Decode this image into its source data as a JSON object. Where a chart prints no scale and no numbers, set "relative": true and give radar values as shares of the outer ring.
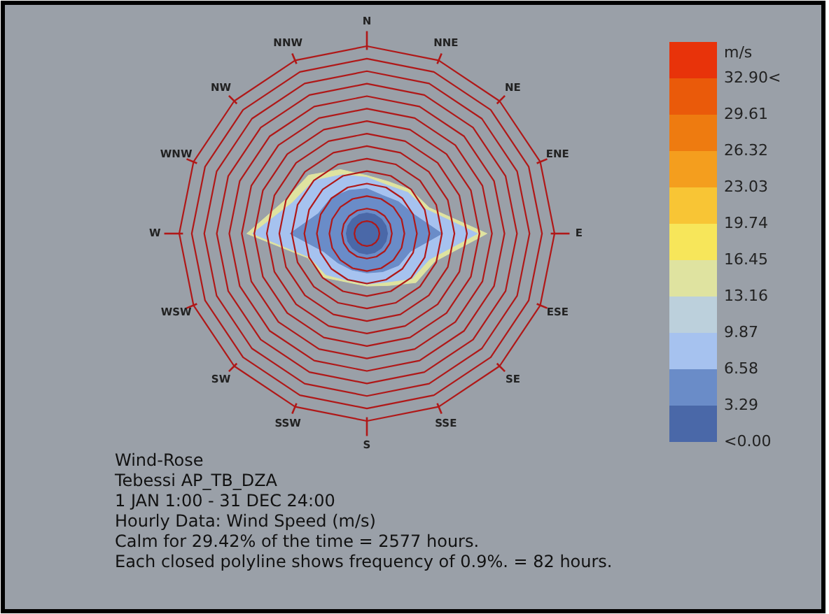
{
  "chart_data": [
    {
      "type": "radar",
      "title": "Wind-Rose",
      "subtitle": "Tebessi AP_TB_DZA",
      "annotations": [
        "1 JAN 1:00 - 31 DEC 24:00",
        "Hourly Data: Wind Speed (m/s)",
        "Calm for 29.42% of the time = 2577 hours.",
        "Each closed polyline shows frequency of 0.9%. = 82 hours."
      ],
      "categories": [
        "N",
        "NNE",
        "NE",
        "ENE",
        "E",
        "ESE",
        "SE",
        "SSE",
        "S",
        "SSW",
        "SW",
        "WSW",
        "W",
        "WNW",
        "NW",
        "NNW"
      ],
      "relative": true,
      "grid": true,
      "series": [
        {
          "color": "#dfe3a0",
          "values": [
            0.31,
            0.3,
            0.33,
            0.36,
            0.64,
            0.39,
            0.37,
            0.3,
            0.28,
            0.28,
            0.33,
            0.34,
            0.64,
            0.47,
            0.44,
            0.37
          ]
        },
        {
          "color": "#a6c2ef",
          "values": [
            0.3,
            0.28,
            0.31,
            0.34,
            0.59,
            0.36,
            0.34,
            0.28,
            0.27,
            0.27,
            0.31,
            0.33,
            0.61,
            0.43,
            0.4,
            0.34
          ]
        },
        {
          "color": "#6a8cc8",
          "values": [
            0.24,
            0.22,
            0.24,
            0.27,
            0.4,
            0.25,
            0.24,
            0.22,
            0.21,
            0.21,
            0.22,
            0.25,
            0.41,
            0.28,
            0.27,
            0.25
          ]
        },
        {
          "color": "#4a68a8",
          "values": [
            0.11,
            0.11,
            0.11,
            0.11,
            0.11,
            0.11,
            0.11,
            0.11,
            0.11,
            0.11,
            0.11,
            0.11,
            0.11,
            0.11,
            0.11,
            0.11
          ]
        }
      ]
    },
    {
      "type": "bar",
      "ylabel": "m/s",
      "categories": [
        null
      ],
      "stacked": true,
      "tick_labels": "y",
      "ylim": [
        0,
        36.19
      ],
      "yticks": [
        {
          "value": 0,
          "label": "<0.00"
        },
        3.29,
        6.58,
        9.87,
        13.16,
        16.45,
        19.74,
        23.03,
        26.32,
        29.61,
        {
          "value": 32.9,
          "label": "32.90<"
        }
      ],
      "series": [
        {
          "color": "#4a68a8",
          "values": [
            3.29
          ]
        },
        {
          "color": "#6a8cc8",
          "values": [
            3.29
          ]
        },
        {
          "color": "#a6c2ef",
          "values": [
            3.29
          ]
        },
        {
          "color": "#bcd0dc",
          "values": [
            3.29
          ]
        },
        {
          "color": "#dfe3a0",
          "values": [
            3.29
          ]
        },
        {
          "color": "#f7e65a",
          "values": [
            3.29
          ]
        },
        {
          "color": "#f8c535",
          "values": [
            3.29
          ]
        },
        {
          "color": "#f49e1e",
          "values": [
            3.29
          ]
        },
        {
          "color": "#ee7b10",
          "values": [
            3.29
          ]
        },
        {
          "color": "#ea5a0a",
          "values": [
            3.29
          ]
        },
        {
          "color": "#e8330a",
          "values": [
            3.29
          ]
        }
      ]
    }
  ]
}
